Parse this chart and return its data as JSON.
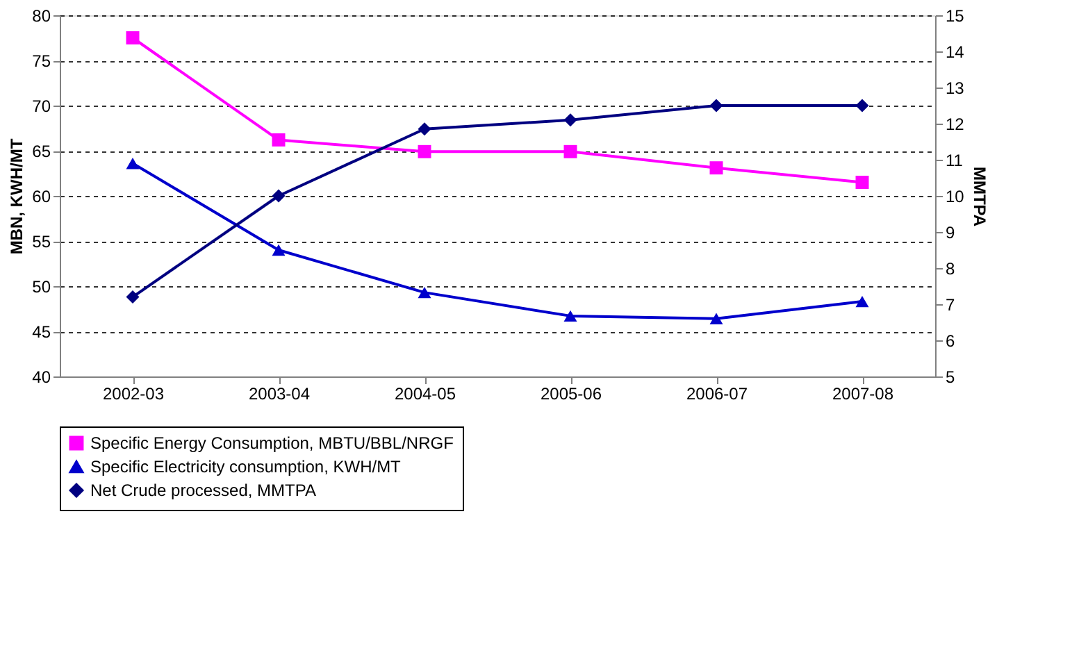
{
  "chart_data": {
    "type": "line",
    "ylabel": "MBN, KWH/MT",
    "y2label": "MMTPA",
    "categories": [
      "2002-03",
      "2003-04",
      "2004-05",
      "2005-06",
      "2006-07",
      "2007-08"
    ],
    "series": [
      {
        "name": "Specific Energy Consumption, MBTU/BBL/NRGF",
        "color": "#ff00ff",
        "marker": "square",
        "values": [
          77.5,
          66.2,
          64.9,
          64.9,
          63.1,
          61.5
        ]
      },
      {
        "name": "Specific Electricity consumption, KWH/MT",
        "color": "#0000cc",
        "marker": "triangle",
        "values": [
          63.6,
          54.0,
          49.3,
          46.7,
          46.4,
          48.3
        ]
      },
      {
        "name": "Net Crude processed, MMTPA",
        "color": "#000080",
        "marker": "diamond",
        "axis": "y2",
        "values": [
          7.2,
          10.0,
          11.85,
          12.1,
          12.5,
          12.5
        ]
      }
    ],
    "ylim": [
      40,
      80
    ],
    "yticks": [
      40,
      45,
      50,
      55,
      60,
      65,
      70,
      75,
      80
    ],
    "y2lim": [
      5,
      15
    ],
    "y2ticks": [
      5,
      6,
      7,
      8,
      9,
      10,
      11,
      12,
      13,
      14,
      15
    ],
    "grid": "y",
    "legend": "bottom",
    "line_style": "solid"
  }
}
